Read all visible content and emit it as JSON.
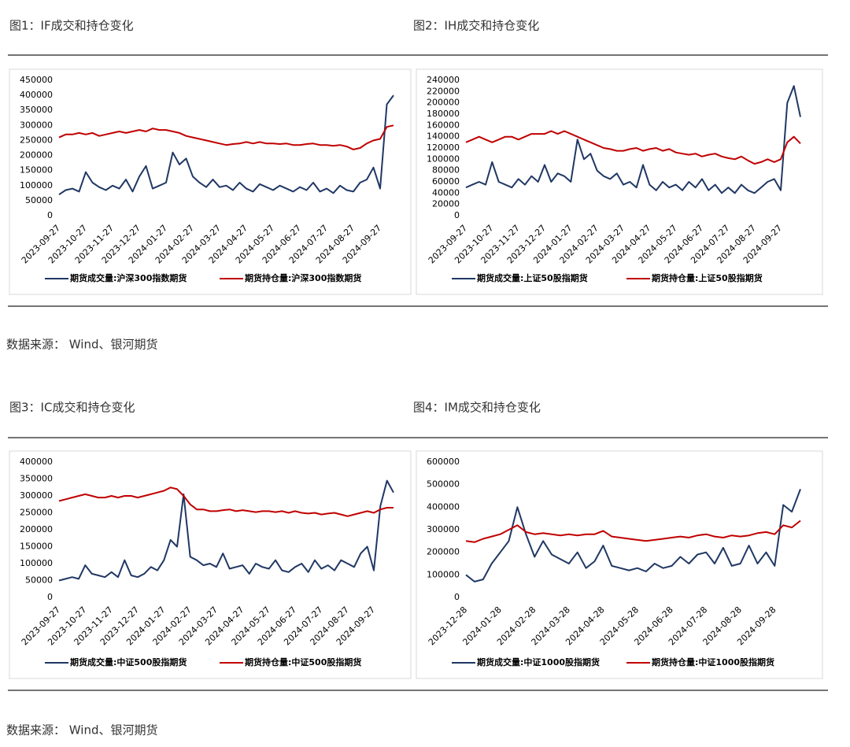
{
  "chart_data": [
    {
      "type": "line",
      "title": "图1：IF成交和持仓变化",
      "categories": [
        "2023-09-27",
        null,
        null,
        null,
        "2023-10-27",
        null,
        null,
        null,
        "2023-11-27",
        null,
        null,
        null,
        "2023-12-27",
        null,
        null,
        null,
        "2024-01-27",
        null,
        null,
        null,
        "2024-02-27",
        null,
        null,
        null,
        "2024-03-27",
        null,
        null,
        null,
        "2024-04-27",
        null,
        null,
        null,
        "2024-05-27",
        null,
        null,
        null,
        "2024-06-27",
        null,
        null,
        null,
        "2024-07-27",
        null,
        null,
        null,
        "2024-08-27",
        null,
        null,
        null,
        "2024-09-27",
        null,
        null
      ],
      "series": [
        {
          "name": "期货成交量:沪深300指数期货",
          "color": "#203864",
          "values": [
            70000,
            85000,
            90000,
            80000,
            145000,
            110000,
            95000,
            85000,
            100000,
            90000,
            120000,
            80000,
            130000,
            165000,
            90000,
            100000,
            110000,
            210000,
            170000,
            190000,
            130000,
            110000,
            95000,
            120000,
            95000,
            100000,
            85000,
            110000,
            90000,
            80000,
            105000,
            95000,
            85000,
            100000,
            90000,
            80000,
            95000,
            85000,
            110000,
            80000,
            90000,
            75000,
            100000,
            85000,
            80000,
            110000,
            120000,
            160000,
            90000,
            370000,
            400000
          ]
        },
        {
          "name": "期货持仓量:沪深300指数期货",
          "color": "#c00000",
          "values": [
            260000,
            270000,
            270000,
            275000,
            270000,
            275000,
            265000,
            270000,
            275000,
            280000,
            275000,
            280000,
            285000,
            280000,
            290000,
            285000,
            285000,
            280000,
            275000,
            265000,
            260000,
            255000,
            250000,
            245000,
            240000,
            235000,
            238000,
            240000,
            245000,
            240000,
            245000,
            240000,
            240000,
            238000,
            240000,
            235000,
            235000,
            238000,
            240000,
            235000,
            235000,
            232000,
            235000,
            230000,
            220000,
            225000,
            240000,
            250000,
            255000,
            295000,
            300000
          ]
        }
      ],
      "ylim": [
        0,
        450000
      ],
      "yticks": [
        0,
        50000,
        100000,
        150000,
        200000,
        250000,
        300000,
        350000,
        400000,
        450000
      ],
      "legend": "bottom"
    },
    {
      "type": "line",
      "title": "图2：IH成交和持仓变化",
      "categories": [
        "2023-09-27",
        null,
        null,
        null,
        "2023-10-27",
        null,
        null,
        null,
        "2023-11-27",
        null,
        null,
        null,
        "2023-12-27",
        null,
        null,
        null,
        "2024-01-27",
        null,
        null,
        null,
        "2024-02-27",
        null,
        null,
        null,
        "2024-03-27",
        null,
        null,
        null,
        "2024-04-27",
        null,
        null,
        null,
        "2024-05-27",
        null,
        null,
        null,
        "2024-06-27",
        null,
        null,
        null,
        "2024-07-27",
        null,
        null,
        null,
        "2024-08-27",
        null,
        null,
        null,
        "2024-09-27",
        null,
        null,
        null
      ],
      "series": [
        {
          "name": "期货成交量:上证50股指期货",
          "color": "#203864",
          "values": [
            50000,
            55000,
            60000,
            55000,
            95000,
            60000,
            55000,
            50000,
            65000,
            55000,
            70000,
            60000,
            90000,
            60000,
            75000,
            70000,
            60000,
            135000,
            100000,
            110000,
            80000,
            70000,
            65000,
            75000,
            55000,
            60000,
            50000,
            90000,
            55000,
            45000,
            60000,
            50000,
            55000,
            45000,
            60000,
            50000,
            65000,
            45000,
            55000,
            40000,
            50000,
            40000,
            55000,
            45000,
            40000,
            50000,
            60000,
            65000,
            45000,
            200000,
            230000,
            175000
          ]
        },
        {
          "name": "期货持仓量:上证50股指期货",
          "color": "#c00000",
          "values": [
            130000,
            135000,
            140000,
            135000,
            130000,
            135000,
            140000,
            140000,
            135000,
            140000,
            145000,
            145000,
            145000,
            150000,
            145000,
            150000,
            145000,
            140000,
            135000,
            130000,
            125000,
            120000,
            118000,
            115000,
            115000,
            118000,
            120000,
            115000,
            118000,
            120000,
            115000,
            118000,
            112000,
            110000,
            108000,
            110000,
            105000,
            108000,
            110000,
            105000,
            102000,
            100000,
            105000,
            98000,
            92000,
            95000,
            100000,
            95000,
            100000,
            130000,
            140000,
            128000
          ]
        }
      ],
      "ylim": [
        0,
        240000
      ],
      "yticks": [
        0,
        20000,
        40000,
        60000,
        80000,
        100000,
        120000,
        140000,
        160000,
        180000,
        200000,
        220000,
        240000
      ],
      "legend": "bottom"
    },
    {
      "type": "line",
      "title": "图3：IC成交和持仓变化",
      "categories": [
        "2023-09-27",
        null,
        null,
        null,
        "2023-10-27",
        null,
        null,
        null,
        "2023-11-27",
        null,
        null,
        null,
        "2023-12-27",
        null,
        null,
        null,
        "2024-01-27",
        null,
        null,
        null,
        "2024-02-27",
        null,
        null,
        null,
        "2024-03-27",
        null,
        null,
        null,
        "2024-04-27",
        null,
        null,
        null,
        "2024-05-27",
        null,
        null,
        null,
        "2024-06-27",
        null,
        null,
        null,
        "2024-07-27",
        null,
        null,
        null,
        "2024-08-27",
        null,
        null,
        null,
        "2024-09-27",
        null,
        null,
        null
      ],
      "series": [
        {
          "name": "期货成交量:中证500股指期货",
          "color": "#203864",
          "values": [
            50000,
            55000,
            60000,
            55000,
            95000,
            70000,
            65000,
            60000,
            75000,
            60000,
            110000,
            65000,
            60000,
            70000,
            90000,
            80000,
            110000,
            170000,
            150000,
            305000,
            120000,
            110000,
            95000,
            100000,
            90000,
            130000,
            85000,
            90000,
            95000,
            70000,
            100000,
            90000,
            85000,
            110000,
            80000,
            75000,
            90000,
            100000,
            75000,
            110000,
            85000,
            95000,
            80000,
            110000,
            100000,
            90000,
            130000,
            150000,
            80000,
            270000,
            345000,
            310000
          ]
        },
        {
          "name": "期货持仓量:中证500股指期货",
          "color": "#c00000",
          "values": [
            285000,
            290000,
            295000,
            300000,
            305000,
            300000,
            295000,
            295000,
            300000,
            295000,
            300000,
            300000,
            295000,
            300000,
            305000,
            310000,
            315000,
            325000,
            320000,
            300000,
            275000,
            260000,
            260000,
            255000,
            255000,
            258000,
            260000,
            255000,
            258000,
            255000,
            252000,
            255000,
            255000,
            252000,
            255000,
            250000,
            255000,
            250000,
            248000,
            250000,
            245000,
            248000,
            250000,
            245000,
            240000,
            245000,
            250000,
            255000,
            250000,
            260000,
            265000,
            265000
          ]
        }
      ],
      "ylim": [
        0,
        400000
      ],
      "yticks": [
        0,
        50000,
        100000,
        150000,
        200000,
        250000,
        300000,
        350000,
        400000
      ],
      "legend": "bottom"
    },
    {
      "type": "line",
      "title": "图4：IM成交和持仓变化",
      "categories": [
        "2023-12-28",
        null,
        null,
        null,
        "2024-01-28",
        null,
        null,
        null,
        "2024-02-28",
        null,
        null,
        null,
        "2024-03-28",
        null,
        null,
        null,
        "2024-04-28",
        null,
        null,
        null,
        "2024-05-28",
        null,
        null,
        null,
        "2024-06-28",
        null,
        null,
        null,
        "2024-07-28",
        null,
        null,
        null,
        "2024-08-28",
        null,
        null,
        null,
        "2024-09-28",
        null,
        null,
        null
      ],
      "series": [
        {
          "name": "期货成交量:中证1000股指期货",
          "color": "#203864",
          "values": [
            100000,
            70000,
            80000,
            150000,
            200000,
            250000,
            400000,
            280000,
            180000,
            250000,
            190000,
            170000,
            150000,
            200000,
            130000,
            160000,
            230000,
            140000,
            130000,
            120000,
            130000,
            115000,
            150000,
            130000,
            140000,
            180000,
            150000,
            190000,
            200000,
            150000,
            220000,
            140000,
            150000,
            230000,
            150000,
            200000,
            140000,
            410000,
            380000,
            480000
          ]
        },
        {
          "name": "期货持仓量:中证1000股指期货",
          "color": "#c00000",
          "values": [
            250000,
            245000,
            260000,
            270000,
            280000,
            300000,
            320000,
            290000,
            280000,
            285000,
            280000,
            275000,
            280000,
            275000,
            280000,
            280000,
            295000,
            270000,
            265000,
            260000,
            255000,
            250000,
            255000,
            260000,
            265000,
            270000,
            265000,
            275000,
            280000,
            270000,
            265000,
            275000,
            270000,
            275000,
            285000,
            290000,
            280000,
            320000,
            310000,
            340000
          ]
        }
      ],
      "ylim": [
        0,
        600000
      ],
      "yticks": [
        0,
        100000,
        200000,
        300000,
        400000,
        500000,
        600000
      ],
      "legend": "bottom"
    }
  ],
  "sources": [
    "数据来源：  Wind、银河期货",
    "数据来源：  Wind、银河期货"
  ]
}
